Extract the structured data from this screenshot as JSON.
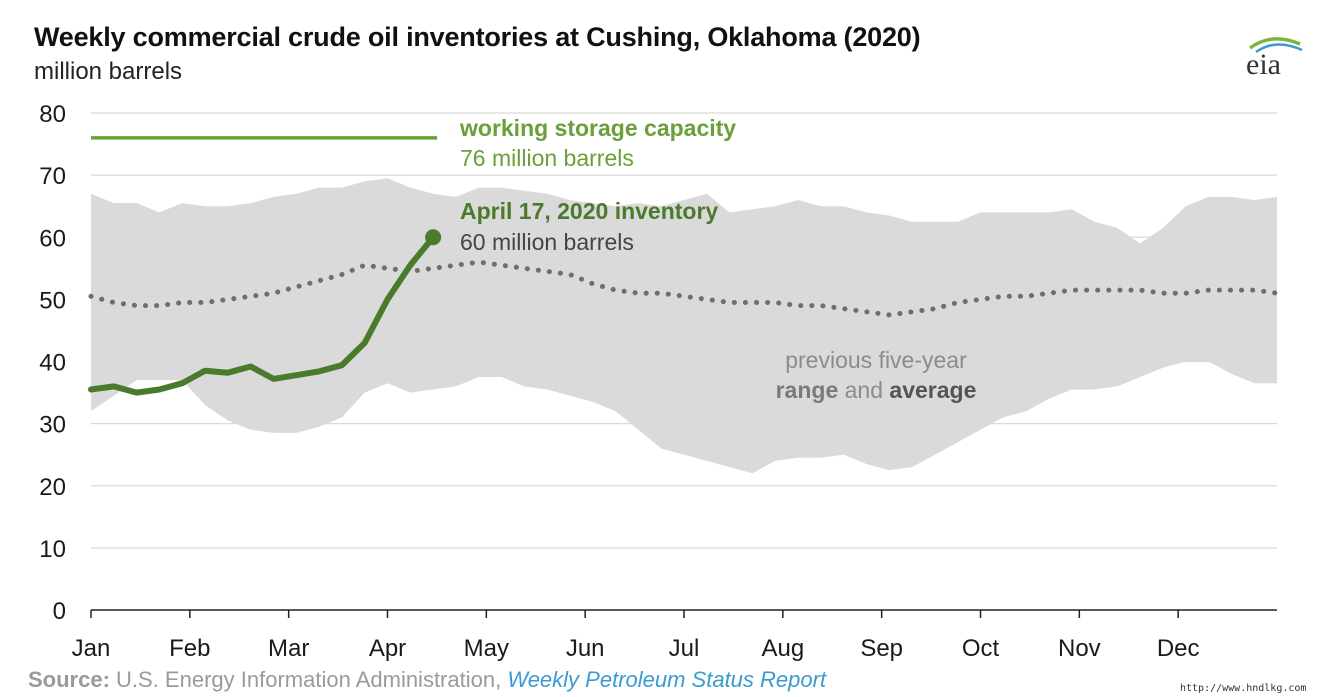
{
  "title": "Weekly commercial crude oil inventories at Cushing, Oklahoma (2020)",
  "subtitle": "million barrels",
  "logo_text": "eia",
  "source": {
    "label": "Source:",
    "text": " U.S. Energy Information Administration, ",
    "link": "Weekly Petroleum Status Report"
  },
  "watermark": "http://www.hndlkg.com",
  "colors": {
    "inventory": "#4a7a2c",
    "capacity": "#6a9f3a",
    "range": "#dadada",
    "average": "#6e6e6e",
    "grid": "#d9d9d9",
    "logo_swoosh": "#7cb342",
    "logo_swoosh2": "#3a9bd0"
  },
  "chart_data": {
    "type": "line",
    "title": "Weekly commercial crude oil inventories at Cushing, Oklahoma (2020)",
    "ylabel": "million barrels",
    "ylim": [
      0,
      80
    ],
    "yticks": [
      0,
      10,
      20,
      30,
      40,
      50,
      60,
      70,
      80
    ],
    "xlim": [
      0,
      52
    ],
    "months": [
      "Jan",
      "Feb",
      "Mar",
      "Apr",
      "May",
      "Jun",
      "Jul",
      "Aug",
      "Sep",
      "Oct",
      "Nov",
      "Dec"
    ],
    "grid": true,
    "range": {
      "name": "previous five-year range",
      "x": [
        0,
        1,
        2,
        3,
        4,
        5,
        6,
        7,
        8,
        9,
        10,
        11,
        12,
        13,
        14,
        15,
        16,
        17,
        18,
        19,
        20,
        21,
        22,
        23,
        24,
        25,
        26,
        27,
        28,
        29,
        30,
        31,
        32,
        33,
        34,
        35,
        36,
        37,
        38,
        39,
        40,
        41,
        42,
        43,
        44,
        45,
        46,
        47,
        48,
        49,
        50,
        51,
        52
      ],
      "upper": [
        67,
        65.5,
        65.5,
        64,
        65.5,
        65,
        65,
        65.5,
        66.5,
        67,
        68,
        68,
        69,
        69.5,
        68,
        67,
        66.5,
        68,
        68,
        67.5,
        67,
        66,
        65.5,
        65,
        65.5,
        65,
        66,
        67,
        64,
        64.5,
        65,
        66,
        65,
        65,
        64,
        63.5,
        62.5,
        62.5,
        62.5,
        64,
        64,
        64,
        64,
        64.5,
        62.5,
        61.5,
        59,
        61.5,
        65,
        66.5,
        66.5,
        66,
        66.5
      ],
      "lower": [
        32,
        34.5,
        37,
        37,
        37,
        33,
        30.5,
        29,
        28.5,
        28.5,
        29.5,
        31,
        35,
        36.5,
        35,
        35.5,
        36,
        37.5,
        37.5,
        36,
        35.5,
        34.5,
        33.5,
        32,
        29,
        26,
        25,
        24,
        23,
        22,
        24,
        24.5,
        24.5,
        25,
        23.5,
        22.5,
        23,
        25,
        27,
        29,
        31,
        32,
        34,
        35.5,
        35.5,
        36,
        37.5,
        39,
        40,
        40,
        38,
        36.5,
        36.5
      ]
    },
    "average": {
      "name": "previous five-year average",
      "x": [
        0,
        1,
        2,
        3,
        4,
        5,
        6,
        7,
        8,
        9,
        10,
        11,
        12,
        13,
        14,
        15,
        16,
        17,
        18,
        19,
        20,
        21,
        22,
        23,
        24,
        25,
        26,
        27,
        28,
        29,
        30,
        31,
        32,
        33,
        34,
        35,
        36,
        37,
        38,
        39,
        40,
        41,
        42,
        43,
        44,
        45,
        46,
        47,
        48,
        49,
        50,
        51,
        52
      ],
      "values": [
        50.5,
        49.5,
        49,
        49,
        49.5,
        49.5,
        50,
        50.5,
        51,
        52,
        53,
        54,
        55.5,
        55,
        54.5,
        55,
        55.5,
        56,
        55.5,
        55,
        54.5,
        54,
        52.5,
        51.5,
        51,
        51,
        50.5,
        50,
        49.5,
        49.5,
        49.5,
        49,
        49,
        48.5,
        48,
        47.5,
        48,
        48.5,
        49.5,
        50,
        50.5,
        50.5,
        51,
        51.5,
        51.5,
        51.5,
        51.5,
        51,
        51,
        51.5,
        51.5,
        51.5,
        51
      ]
    },
    "inventory": {
      "name": "2020 inventory",
      "x": [
        0,
        1,
        2,
        3,
        4,
        5,
        6,
        7,
        8,
        9,
        10,
        11,
        12,
        13,
        14,
        15
      ],
      "values": [
        35.5,
        36,
        35,
        35.5,
        36.5,
        38.5,
        38.2,
        39.2,
        37.2,
        37.8,
        38.4,
        39.4,
        43,
        50,
        55.5,
        60
      ]
    },
    "capacity": {
      "value": 76,
      "x_start": 0,
      "x_end": 15,
      "label": "working storage capacity",
      "sublabel": "76 million barrels"
    },
    "annotations": {
      "inventory_label": "April 17, 2020 inventory",
      "inventory_sublabel": "60 million barrels",
      "range_line1": "previous five-year",
      "range_word": "range",
      "and_word": " and ",
      "average_word": "average"
    }
  }
}
